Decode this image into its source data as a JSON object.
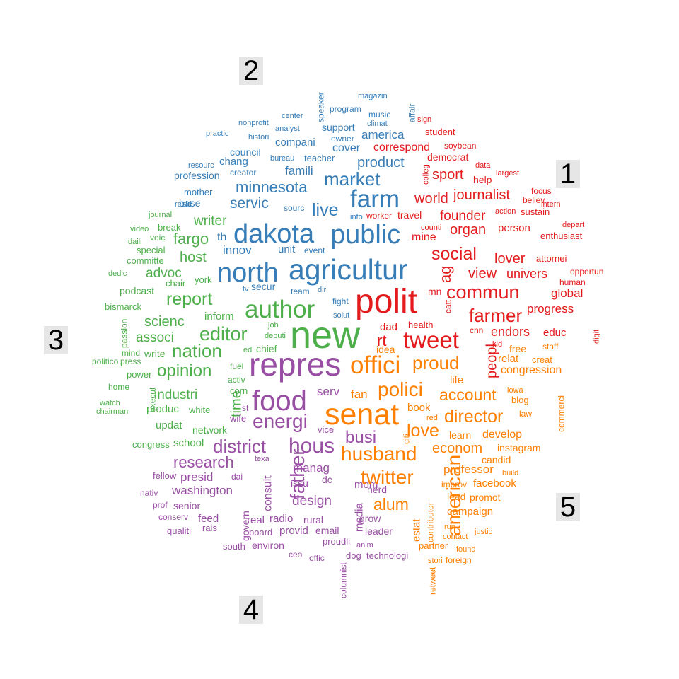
{
  "cluster_labels": [
    "1",
    "2",
    "3",
    "4",
    "5"
  ],
  "colors": {
    "1": "#e41a1c",
    "2": "#377eb8",
    "3": "#4daf4a",
    "4": "#984ea3",
    "5": "#ff7f00"
  },
  "words": [
    {
      "t": "nonprofit",
      "c": "2"
    },
    {
      "t": "practic",
      "c": "2"
    },
    {
      "t": "histori",
      "c": "2"
    },
    {
      "t": "center",
      "c": "2"
    },
    {
      "t": "analyst",
      "c": "2"
    },
    {
      "t": "speaker",
      "c": "2"
    },
    {
      "t": "program",
      "c": "2"
    },
    {
      "t": "magazin",
      "c": "2"
    },
    {
      "t": "music",
      "c": "2"
    },
    {
      "t": "climat",
      "c": "2"
    },
    {
      "t": "affair",
      "c": "2"
    },
    {
      "t": "support",
      "c": "2"
    },
    {
      "t": "owner",
      "c": "2"
    },
    {
      "t": "america",
      "c": "2"
    },
    {
      "t": "compani",
      "c": "2"
    },
    {
      "t": "cover",
      "c": "2"
    },
    {
      "t": "council",
      "c": "2"
    },
    {
      "t": "bureau",
      "c": "2"
    },
    {
      "t": "teacher",
      "c": "2"
    },
    {
      "t": "product",
      "c": "2"
    },
    {
      "t": "resourc",
      "c": "2"
    },
    {
      "t": "chang",
      "c": "2"
    },
    {
      "t": "creator",
      "c": "2"
    },
    {
      "t": "famili",
      "c": "2"
    },
    {
      "t": "market",
      "c": "2"
    },
    {
      "t": "profession",
      "c": "2"
    },
    {
      "t": "minnesota",
      "c": "2"
    },
    {
      "t": "mother",
      "c": "2"
    },
    {
      "t": "farm",
      "c": "2"
    },
    {
      "t": "resid",
      "c": "2"
    },
    {
      "t": "base",
      "c": "2"
    },
    {
      "t": "servic",
      "c": "2"
    },
    {
      "t": "live",
      "c": "2"
    },
    {
      "t": "sourc",
      "c": "2"
    },
    {
      "t": "info",
      "c": "2"
    },
    {
      "t": "dakota",
      "c": "2"
    },
    {
      "t": "public",
      "c": "2"
    },
    {
      "t": "th",
      "c": "2"
    },
    {
      "t": "innov",
      "c": "2"
    },
    {
      "t": "unit",
      "c": "2"
    },
    {
      "t": "event",
      "c": "2"
    },
    {
      "t": "north",
      "c": "2"
    },
    {
      "t": "agricultur",
      "c": "2"
    },
    {
      "t": "secur",
      "c": "2"
    },
    {
      "t": "tv",
      "c": "2"
    },
    {
      "t": "team",
      "c": "2"
    },
    {
      "t": "dir",
      "c": "2"
    },
    {
      "t": "fight",
      "c": "2"
    },
    {
      "t": "solut",
      "c": "2"
    },
    {
      "t": "sign",
      "c": "1"
    },
    {
      "t": "student",
      "c": "1"
    },
    {
      "t": "soybean",
      "c": "1"
    },
    {
      "t": "correspond",
      "c": "1"
    },
    {
      "t": "democrat",
      "c": "1"
    },
    {
      "t": "data",
      "c": "1"
    },
    {
      "t": "colleg",
      "c": "1"
    },
    {
      "t": "sport",
      "c": "1"
    },
    {
      "t": "help",
      "c": "1"
    },
    {
      "t": "largest",
      "c": "1"
    },
    {
      "t": "journalist",
      "c": "1"
    },
    {
      "t": "focus",
      "c": "1"
    },
    {
      "t": "believ",
      "c": "1"
    },
    {
      "t": "world",
      "c": "1"
    },
    {
      "t": "action",
      "c": "1"
    },
    {
      "t": "sustain",
      "c": "1"
    },
    {
      "t": "intern",
      "c": "1"
    },
    {
      "t": "founder",
      "c": "1"
    },
    {
      "t": "depart",
      "c": "1"
    },
    {
      "t": "worker",
      "c": "1"
    },
    {
      "t": "travel",
      "c": "1"
    },
    {
      "t": "counti",
      "c": "1"
    },
    {
      "t": "organ",
      "c": "1"
    },
    {
      "t": "person",
      "c": "1"
    },
    {
      "t": "enthusiast",
      "c": "1"
    },
    {
      "t": "mine",
      "c": "1"
    },
    {
      "t": "social",
      "c": "1"
    },
    {
      "t": "lover",
      "c": "1"
    },
    {
      "t": "attornei",
      "c": "1"
    },
    {
      "t": "ag",
      "c": "1"
    },
    {
      "t": "view",
      "c": "1"
    },
    {
      "t": "univers",
      "c": "1"
    },
    {
      "t": "opportun",
      "c": "1"
    },
    {
      "t": "human",
      "c": "1"
    },
    {
      "t": "commun",
      "c": "1"
    },
    {
      "t": "global",
      "c": "1"
    },
    {
      "t": "mn",
      "c": "1"
    },
    {
      "t": "polit",
      "c": "1"
    },
    {
      "t": "progress",
      "c": "1"
    },
    {
      "t": "catt",
      "c": "1"
    },
    {
      "t": "farmer",
      "c": "1"
    },
    {
      "t": "tweet",
      "c": "1"
    },
    {
      "t": "cnn",
      "c": "1"
    },
    {
      "t": "endors",
      "c": "1"
    },
    {
      "t": "educ",
      "c": "1"
    },
    {
      "t": "digit",
      "c": "1"
    },
    {
      "t": "health",
      "c": "1"
    },
    {
      "t": "dad",
      "c": "1"
    },
    {
      "t": "rt",
      "c": "1"
    },
    {
      "t": "kid",
      "c": "1"
    },
    {
      "t": "peopl",
      "c": "1"
    },
    {
      "t": "journal",
      "c": "3"
    },
    {
      "t": "video",
      "c": "3"
    },
    {
      "t": "break",
      "c": "3"
    },
    {
      "t": "daili",
      "c": "3"
    },
    {
      "t": "voic",
      "c": "3"
    },
    {
      "t": "special",
      "c": "3"
    },
    {
      "t": "committe",
      "c": "3"
    },
    {
      "t": "writer",
      "c": "3"
    },
    {
      "t": "fargo",
      "c": "3"
    },
    {
      "t": "host",
      "c": "3"
    },
    {
      "t": "advoc",
      "c": "3"
    },
    {
      "t": "dedic",
      "c": "3"
    },
    {
      "t": "chair",
      "c": "3"
    },
    {
      "t": "york",
      "c": "3"
    },
    {
      "t": "podcast",
      "c": "3"
    },
    {
      "t": "report",
      "c": "3"
    },
    {
      "t": "bismarck",
      "c": "3"
    },
    {
      "t": "inform",
      "c": "3"
    },
    {
      "t": "author",
      "c": "3"
    },
    {
      "t": "scienc",
      "c": "3"
    },
    {
      "t": "new",
      "c": "3"
    },
    {
      "t": "editor",
      "c": "3"
    },
    {
      "t": "passion",
      "c": "3"
    },
    {
      "t": "associ",
      "c": "3"
    },
    {
      "t": "job",
      "c": "3"
    },
    {
      "t": "deputi",
      "c": "3"
    },
    {
      "t": "mind",
      "c": "3"
    },
    {
      "t": "write",
      "c": "3"
    },
    {
      "t": "nation",
      "c": "3"
    },
    {
      "t": "chief",
      "c": "3"
    },
    {
      "t": "ed",
      "c": "3"
    },
    {
      "t": "politico",
      "c": "3"
    },
    {
      "t": "press",
      "c": "3"
    },
    {
      "t": "opinion",
      "c": "3"
    },
    {
      "t": "fuel",
      "c": "3"
    },
    {
      "t": "power",
      "c": "3"
    },
    {
      "t": "activ",
      "c": "3"
    },
    {
      "t": "home",
      "c": "3"
    },
    {
      "t": "execut",
      "c": "3"
    },
    {
      "t": "industri",
      "c": "3"
    },
    {
      "t": "time",
      "c": "3"
    },
    {
      "t": "corn",
      "c": "3"
    },
    {
      "t": "watch",
      "c": "3"
    },
    {
      "t": "chairman",
      "c": "3"
    },
    {
      "t": "produc",
      "c": "3"
    },
    {
      "t": "white",
      "c": "3"
    },
    {
      "t": "updat",
      "c": "3"
    },
    {
      "t": "network",
      "c": "3"
    },
    {
      "t": "congress",
      "c": "3"
    },
    {
      "t": "school",
      "c": "3"
    },
    {
      "t": "repres",
      "c": "4"
    },
    {
      "t": "food",
      "c": "4"
    },
    {
      "t": "energi",
      "c": "4"
    },
    {
      "t": "serv",
      "c": "4"
    },
    {
      "t": "busi",
      "c": "4"
    },
    {
      "t": "wife",
      "c": "4"
    },
    {
      "t": "st",
      "c": "4"
    },
    {
      "t": "vice",
      "c": "4"
    },
    {
      "t": "district",
      "c": "4"
    },
    {
      "t": "hous",
      "c": "4"
    },
    {
      "t": "research",
      "c": "4"
    },
    {
      "t": "texa",
      "c": "4"
    },
    {
      "t": "fellow",
      "c": "4"
    },
    {
      "t": "presid",
      "c": "4"
    },
    {
      "t": "dai",
      "c": "4"
    },
    {
      "t": "consult",
      "c": "4"
    },
    {
      "t": "father",
      "c": "4"
    },
    {
      "t": "manag",
      "c": "4"
    },
    {
      "t": "mom",
      "c": "4"
    },
    {
      "t": "media",
      "c": "4"
    },
    {
      "t": "issu",
      "c": "4"
    },
    {
      "t": "dc",
      "c": "4"
    },
    {
      "t": "nativ",
      "c": "4"
    },
    {
      "t": "washington",
      "c": "4"
    },
    {
      "t": "design",
      "c": "4"
    },
    {
      "t": "prof",
      "c": "4"
    },
    {
      "t": "senior",
      "c": "4"
    },
    {
      "t": "conserv",
      "c": "4"
    },
    {
      "t": "feed",
      "c": "4"
    },
    {
      "t": "govern",
      "c": "4"
    },
    {
      "t": "real",
      "c": "4"
    },
    {
      "t": "radio",
      "c": "4"
    },
    {
      "t": "rural",
      "c": "4"
    },
    {
      "t": "qualiti",
      "c": "4"
    },
    {
      "t": "rais",
      "c": "4"
    },
    {
      "t": "board",
      "c": "4"
    },
    {
      "t": "provid",
      "c": "4"
    },
    {
      "t": "email",
      "c": "4"
    },
    {
      "t": "south",
      "c": "4"
    },
    {
      "t": "environ",
      "c": "4"
    },
    {
      "t": "proudli",
      "c": "4"
    },
    {
      "t": "anim",
      "c": "4"
    },
    {
      "t": "ceo",
      "c": "4"
    },
    {
      "t": "offic",
      "c": "4"
    },
    {
      "t": "dog",
      "c": "4"
    },
    {
      "t": "technologi",
      "c": "4"
    },
    {
      "t": "columnist",
      "c": "4"
    },
    {
      "t": "grow",
      "c": "4"
    },
    {
      "t": "leader",
      "c": "4"
    },
    {
      "t": "nerd",
      "c": "4"
    },
    {
      "t": "senat",
      "c": "5"
    },
    {
      "t": "offici",
      "c": "5"
    },
    {
      "t": "polici",
      "c": "5"
    },
    {
      "t": "proud",
      "c": "5"
    },
    {
      "t": "husband",
      "c": "5"
    },
    {
      "t": "account",
      "c": "5"
    },
    {
      "t": "director",
      "c": "5"
    },
    {
      "t": "love",
      "c": "5"
    },
    {
      "t": "twitter",
      "c": "5"
    },
    {
      "t": "alum",
      "c": "5"
    },
    {
      "t": "american",
      "c": "5"
    },
    {
      "t": "econom",
      "c": "5"
    },
    {
      "t": "professor",
      "c": "5"
    },
    {
      "t": "facebook",
      "c": "5"
    },
    {
      "t": "campaign",
      "c": "5"
    },
    {
      "t": "idea",
      "c": "5"
    },
    {
      "t": "fan",
      "c": "5"
    },
    {
      "t": "free",
      "c": "5"
    },
    {
      "t": "staff",
      "c": "5"
    },
    {
      "t": "relat",
      "c": "5"
    },
    {
      "t": "creat",
      "c": "5"
    },
    {
      "t": "congression",
      "c": "5"
    },
    {
      "t": "life",
      "c": "5"
    },
    {
      "t": "iowa",
      "c": "5"
    },
    {
      "t": "blog",
      "c": "5"
    },
    {
      "t": "law",
      "c": "5"
    },
    {
      "t": "commerci",
      "c": "5"
    },
    {
      "t": "book",
      "c": "5"
    },
    {
      "t": "citi",
      "c": "5"
    },
    {
      "t": "red",
      "c": "5"
    },
    {
      "t": "learn",
      "c": "5"
    },
    {
      "t": "develop",
      "c": "5"
    },
    {
      "t": "instagram",
      "c": "5"
    },
    {
      "t": "candid",
      "c": "5"
    },
    {
      "t": "build",
      "c": "5"
    },
    {
      "t": "improv",
      "c": "5"
    },
    {
      "t": "lead",
      "c": "5"
    },
    {
      "t": "promot",
      "c": "5"
    },
    {
      "t": "contributor",
      "c": "5"
    },
    {
      "t": "estat",
      "c": "5"
    },
    {
      "t": "run",
      "c": "5"
    },
    {
      "t": "justic",
      "c": "5"
    },
    {
      "t": "contact",
      "c": "5"
    },
    {
      "t": "partner",
      "c": "5"
    },
    {
      "t": "found",
      "c": "5"
    },
    {
      "t": "retweet",
      "c": "5"
    },
    {
      "t": "stori",
      "c": "5"
    },
    {
      "t": "foreign",
      "c": "5"
    }
  ]
}
